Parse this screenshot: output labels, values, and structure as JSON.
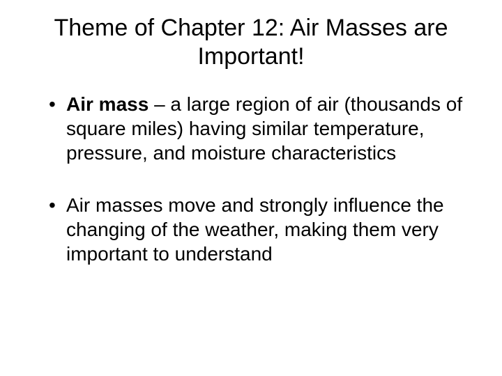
{
  "slide": {
    "title": "Theme of Chapter 12: Air Masses are Important!",
    "bullets": [
      {
        "term": "Air mass",
        "definition": " – a large region of air (thousands of square miles) having similar temperature, pressure, and moisture characteristics"
      },
      {
        "text": "Air masses move and strongly influence the changing of the weather, making them very important to understand"
      }
    ],
    "colors": {
      "background": "#ffffff",
      "text": "#000000"
    },
    "typography": {
      "title_fontsize": 34,
      "body_fontsize": 28,
      "font_family": "Arial"
    }
  }
}
